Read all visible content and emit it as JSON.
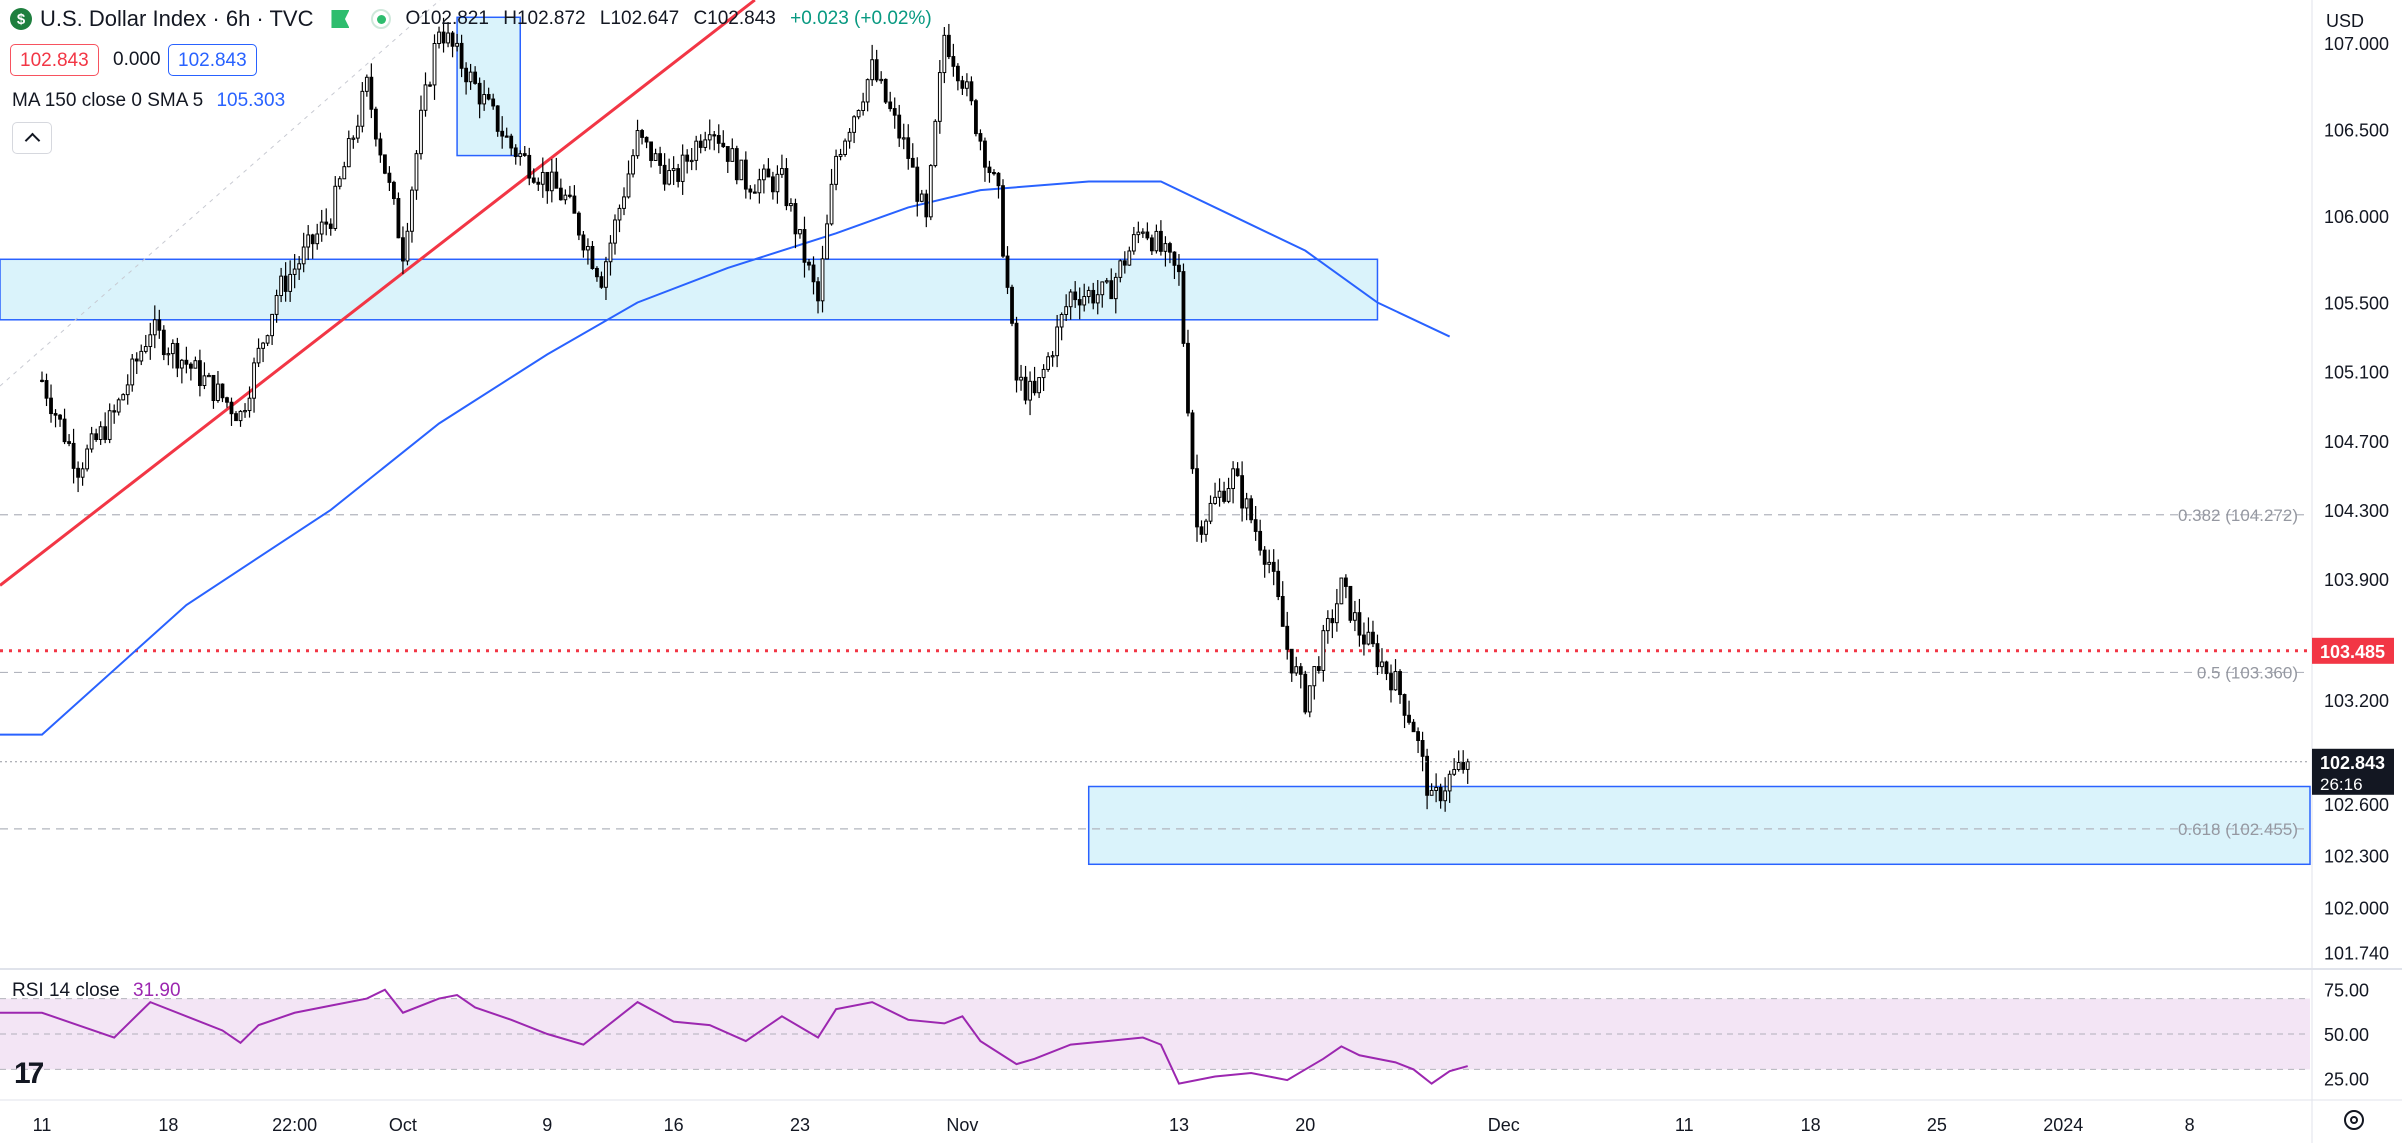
{
  "header": {
    "logo_symbol": "$",
    "title": "U.S. Dollar Index · 6h · TVC",
    "open": "O102.821",
    "high": "H102.872",
    "low": "L102.647",
    "close": "C102.843",
    "change": "+0.023 (+0.02%)"
  },
  "quote": {
    "bid": "102.843",
    "spread": "0.000",
    "ask": "102.843"
  },
  "ma_legend": {
    "label": "MA 150 close 0 SMA 5",
    "value": "105.303"
  },
  "rsi_legend": {
    "label": "RSI 14 close",
    "value": "31.90"
  },
  "currency": "USD",
  "logo_text": "17",
  "icons": [
    "dollar-logo-icon",
    "flag-icon",
    "market-status-icon",
    "chevron-up-icon",
    "gear-icon",
    "tradingview-logo-icon"
  ],
  "colors": {
    "up": "#ffffff",
    "down": "#000000",
    "ma": "#2962ff",
    "rsi": "#9c27b0",
    "trendline": "#f23645",
    "zone": "#cdeffa",
    "zone_border": "#2962ff"
  },
  "chart_data": {
    "type": "candlestick",
    "symbol": "DXY",
    "interval": "6h",
    "price_axis": {
      "range": [
        101.65,
        107.25
      ],
      "ticks": [
        "107.000",
        "106.500",
        "106.000",
        "105.500",
        "105.100",
        "104.700",
        "104.300",
        "103.900",
        "103.200",
        "102.600",
        "102.300",
        "102.000",
        "101.740"
      ]
    },
    "time_axis": {
      "day_range": [
        0,
        128
      ],
      "ticks": [
        {
          "label": "11",
          "day": 0
        },
        {
          "label": "18",
          "day": 7
        },
        {
          "label": "22:00",
          "day": 14
        },
        {
          "label": "Oct",
          "day": 20
        },
        {
          "label": "9",
          "day": 28
        },
        {
          "label": "16",
          "day": 35
        },
        {
          "label": "23",
          "day": 42
        },
        {
          "label": "Nov",
          "day": 51
        },
        {
          "label": "13",
          "day": 63
        },
        {
          "label": "20",
          "day": 70
        },
        {
          "label": "Dec",
          "day": 81
        },
        {
          "label": "11",
          "day": 91
        },
        {
          "label": "18",
          "day": 98
        },
        {
          "label": "25",
          "day": 105
        },
        {
          "label": "2024",
          "day": 112
        },
        {
          "label": "8",
          "day": 119
        }
      ]
    },
    "price_path": [
      [
        0,
        105.05
      ],
      [
        2,
        104.55
      ],
      [
        4,
        104.85
      ],
      [
        6,
        105.35
      ],
      [
        9,
        105.05
      ],
      [
        11,
        104.85
      ],
      [
        13,
        105.55
      ],
      [
        16,
        106.0
      ],
      [
        18,
        106.75
      ],
      [
        20,
        105.8
      ],
      [
        21,
        106.55
      ],
      [
        22,
        107.1
      ],
      [
        24,
        106.75
      ],
      [
        26,
        106.4
      ],
      [
        29,
        106.1
      ],
      [
        31,
        105.65
      ],
      [
        33,
        106.45
      ],
      [
        35,
        106.2
      ],
      [
        37,
        106.55
      ],
      [
        39,
        106.2
      ],
      [
        41,
        106.2
      ],
      [
        43,
        105.5
      ],
      [
        44,
        106.35
      ],
      [
        46,
        106.85
      ],
      [
        48,
        106.35
      ],
      [
        49,
        105.95
      ],
      [
        50,
        107.05
      ],
      [
        51,
        106.8
      ],
      [
        53,
        106.1
      ],
      [
        54,
        105.05
      ],
      [
        55,
        104.95
      ],
      [
        57,
        105.55
      ],
      [
        59,
        105.55
      ],
      [
        61,
        105.95
      ],
      [
        63,
        105.65
      ],
      [
        64,
        104.2
      ],
      [
        66,
        104.5
      ],
      [
        68,
        104.0
      ],
      [
        69,
        103.5
      ],
      [
        70,
        103.2
      ],
      [
        72,
        103.85
      ],
      [
        73,
        103.6
      ],
      [
        75,
        103.3
      ],
      [
        76,
        103.05
      ],
      [
        77,
        102.6
      ],
      [
        78,
        102.75
      ],
      [
        79,
        102.84
      ]
    ],
    "last_price": 102.843,
    "countdown": "26:16",
    "series": [
      {
        "name": "MA 150 close 0 SMA 5",
        "points": [
          [
            0,
            103.0
          ],
          [
            8,
            103.75
          ],
          [
            16,
            104.3
          ],
          [
            22,
            104.8
          ],
          [
            28,
            105.2
          ],
          [
            33,
            105.5
          ],
          [
            38,
            105.7
          ],
          [
            44,
            105.9
          ],
          [
            48,
            106.05
          ],
          [
            52,
            106.15
          ],
          [
            58,
            106.2
          ],
          [
            62,
            106.2
          ],
          [
            66,
            106.0
          ],
          [
            70,
            105.8
          ],
          [
            74,
            105.5
          ],
          [
            78,
            105.303
          ]
        ]
      }
    ],
    "horizontal_lines": [
      {
        "label": "0.382 (104.272)",
        "price": 104.272,
        "style": "dashed"
      },
      {
        "label": "0.5 (103.360)",
        "price": 103.36,
        "style": "dashed"
      },
      {
        "label": "0.618 (102.455)",
        "price": 102.455,
        "style": "dashed"
      },
      {
        "label": "103.485",
        "price": 103.485,
        "style": "dotted-red"
      }
    ],
    "zones": [
      {
        "day_start": 0,
        "day_end": 74,
        "price_top": 105.75,
        "price_bottom": 105.4
      },
      {
        "day_start": 58,
        "day_end": 128,
        "price_top": 102.7,
        "price_bottom": 102.25
      },
      {
        "day_start": 23,
        "day_end": 26.5,
        "price_top": 107.15,
        "price_bottom": 106.35
      }
    ],
    "trendline": {
      "from": [
        0,
        103.95
      ],
      "to": [
        39.5,
        107.25
      ]
    },
    "rsi": {
      "name": "RSI 14 close",
      "value": 31.9,
      "axis_ticks": [
        "75.00",
        "50.00",
        "25.00"
      ],
      "range": [
        15,
        85
      ],
      "band": [
        30,
        70
      ],
      "points": [
        [
          0,
          62
        ],
        [
          2,
          55
        ],
        [
          4,
          48
        ],
        [
          6,
          68
        ],
        [
          8,
          60
        ],
        [
          10,
          52
        ],
        [
          11,
          45
        ],
        [
          12,
          55
        ],
        [
          14,
          62
        ],
        [
          16,
          66
        ],
        [
          18,
          70
        ],
        [
          19,
          75
        ],
        [
          20,
          62
        ],
        [
          22,
          70
        ],
        [
          23,
          72
        ],
        [
          24,
          65
        ],
        [
          26,
          58
        ],
        [
          28,
          50
        ],
        [
          30,
          44
        ],
        [
          32,
          60
        ],
        [
          33,
          68
        ],
        [
          35,
          57
        ],
        [
          37,
          55
        ],
        [
          39,
          46
        ],
        [
          41,
          60
        ],
        [
          43,
          48
        ],
        [
          44,
          64
        ],
        [
          46,
          68
        ],
        [
          48,
          58
        ],
        [
          50,
          56
        ],
        [
          51,
          60
        ],
        [
          52,
          46
        ],
        [
          54,
          33
        ],
        [
          55,
          36
        ],
        [
          57,
          44
        ],
        [
          59,
          46
        ],
        [
          61,
          48
        ],
        [
          62,
          44
        ],
        [
          63,
          22
        ],
        [
          65,
          26
        ],
        [
          67,
          28
        ],
        [
          69,
          24
        ],
        [
          70,
          30
        ],
        [
          71,
          36
        ],
        [
          72,
          43
        ],
        [
          73,
          38
        ],
        [
          75,
          34
        ],
        [
          76,
          30
        ],
        [
          77,
          22
        ],
        [
          78,
          29
        ],
        [
          79,
          31.9
        ]
      ]
    }
  }
}
